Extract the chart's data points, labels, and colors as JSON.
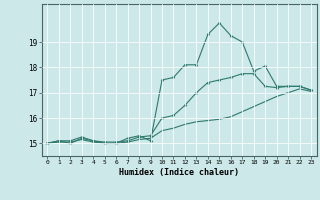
{
  "xlabel": "Humidex (Indice chaleur)",
  "bg_color": "#cce8e8",
  "line_color": "#2d7a6e",
  "grid_color": "#b0d8d8",
  "xlim": [
    -0.5,
    23.5
  ],
  "ylim": [
    14.5,
    20.5
  ],
  "yticks": [
    15,
    16,
    17,
    18,
    19
  ],
  "xticks": [
    0,
    1,
    2,
    3,
    4,
    5,
    6,
    7,
    8,
    9,
    10,
    11,
    12,
    13,
    14,
    15,
    16,
    17,
    18,
    19,
    20,
    21,
    22,
    23
  ],
  "line1_x": [
    0,
    1,
    2,
    3,
    4,
    5,
    6,
    7,
    8,
    9,
    10,
    11,
    12,
    13,
    14,
    15,
    16,
    17,
    18,
    19,
    20,
    21,
    22,
    23
  ],
  "line1_y": [
    15.0,
    15.1,
    15.0,
    15.2,
    15.1,
    15.0,
    15.0,
    15.2,
    15.3,
    15.1,
    17.5,
    17.6,
    18.1,
    18.1,
    19.3,
    19.75,
    19.25,
    19.0,
    17.85,
    18.05,
    17.25,
    17.25,
    17.25,
    17.1
  ],
  "line2_x": [
    0,
    1,
    2,
    3,
    4,
    5,
    6,
    7,
    8,
    9,
    10,
    11,
    12,
    13,
    14,
    15,
    16,
    17,
    18,
    19,
    20,
    21,
    22,
    23
  ],
  "line2_y": [
    15.0,
    15.1,
    15.1,
    15.25,
    15.1,
    15.05,
    15.05,
    15.1,
    15.25,
    15.3,
    16.0,
    16.1,
    16.5,
    17.0,
    17.4,
    17.5,
    17.6,
    17.75,
    17.75,
    17.25,
    17.2,
    17.25,
    17.25,
    17.1
  ],
  "line3_x": [
    0,
    1,
    2,
    3,
    4,
    5,
    6,
    7,
    8,
    9,
    10,
    11,
    12,
    13,
    14,
    15,
    16,
    17,
    18,
    19,
    20,
    21,
    22,
    23
  ],
  "line3_y": [
    15.0,
    15.05,
    15.05,
    15.15,
    15.05,
    15.0,
    15.0,
    15.05,
    15.15,
    15.2,
    15.5,
    15.6,
    15.75,
    15.85,
    15.9,
    15.95,
    16.05,
    16.25,
    16.45,
    16.65,
    16.85,
    17.0,
    17.15,
    17.05
  ]
}
